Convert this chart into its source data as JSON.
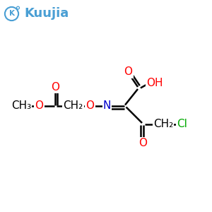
{
  "bg_color": "#ffffff",
  "logo_text": "Kuujia",
  "logo_color": "#4a9fd4",
  "atom_colors": {
    "O": "#ff0000",
    "N": "#0000cc",
    "Cl": "#00aa00",
    "C": "#000000"
  },
  "bond_color": "#000000",
  "bond_width": 1.8,
  "font_size_atoms": 11,
  "font_size_logo": 13,
  "figsize": [
    3.0,
    3.0
  ],
  "dpi": 100,
  "xlim": [
    0,
    10
  ],
  "ylim": [
    0,
    10
  ]
}
